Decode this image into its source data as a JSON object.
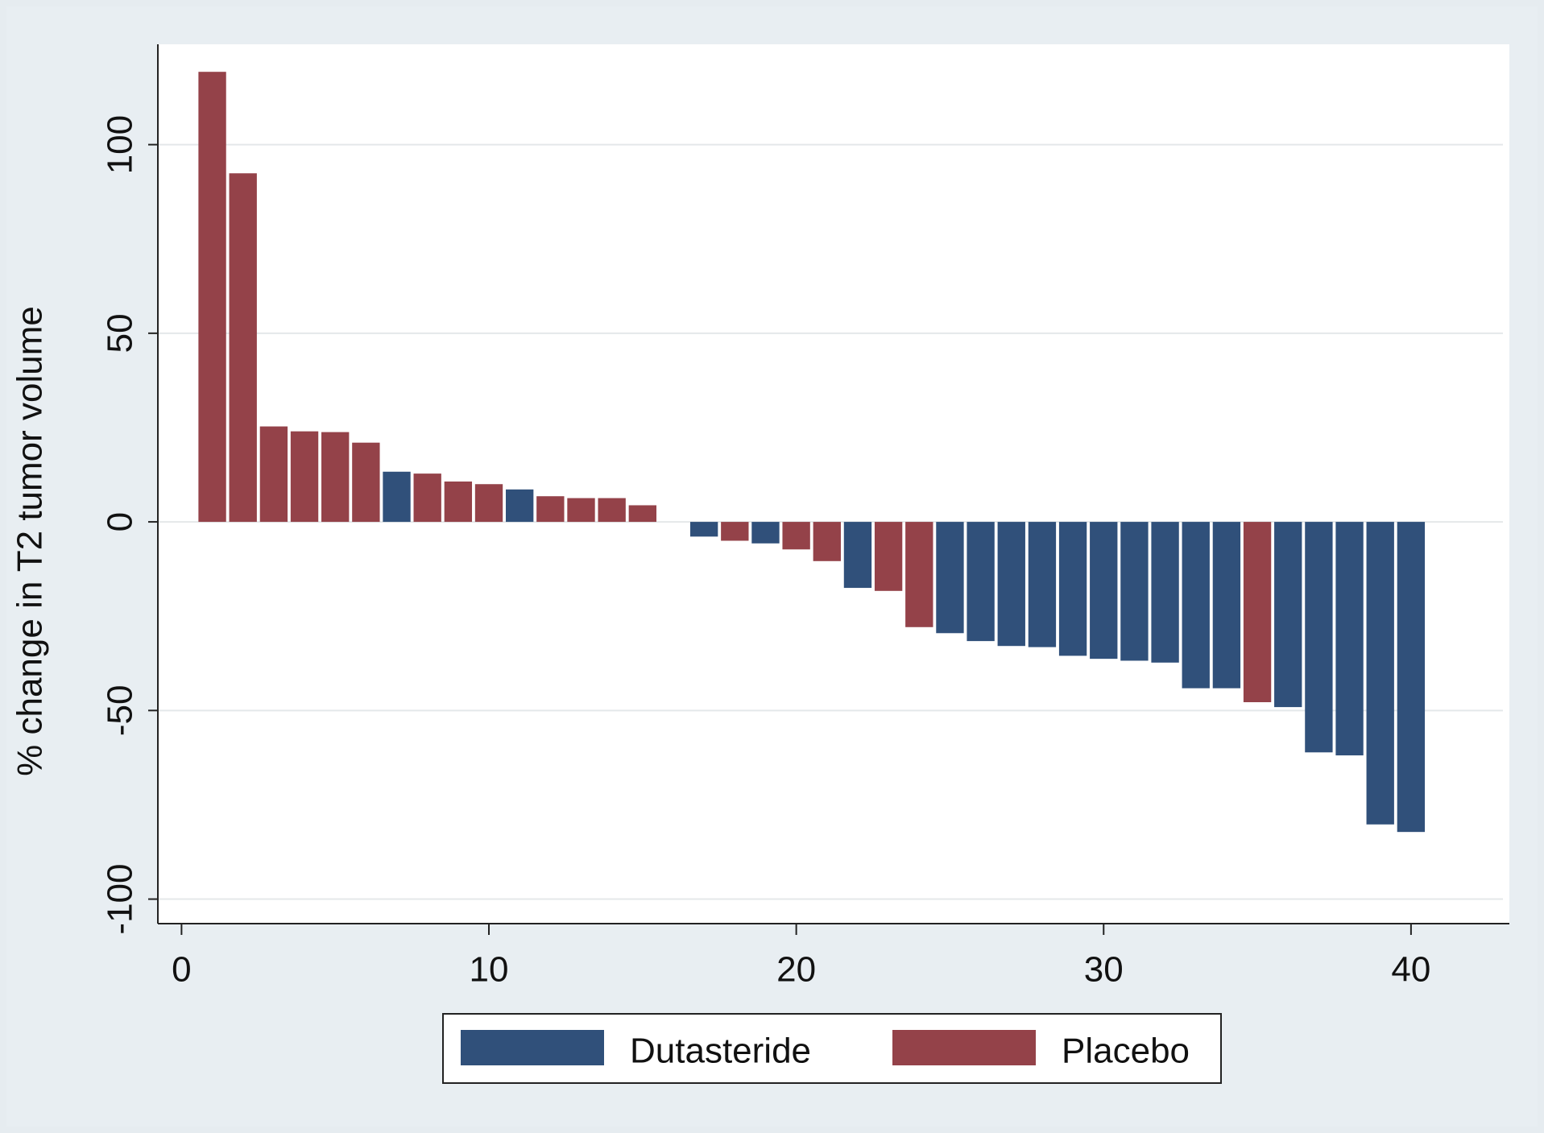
{
  "chart_data": {
    "type": "bar",
    "ylabel": "% change in T2 tumor volume",
    "x": [
      1,
      2,
      3,
      4,
      5,
      6,
      7,
      8,
      9,
      10,
      11,
      12,
      13,
      14,
      15,
      17,
      18,
      19,
      20,
      21,
      22,
      23,
      24,
      25,
      26,
      27,
      28,
      29,
      30,
      31,
      32,
      33,
      34,
      35,
      36,
      37,
      38,
      39,
      40
    ],
    "series": [
      {
        "name": "Dutasteride",
        "color": "#30507a",
        "values": [
          null,
          null,
          null,
          null,
          null,
          null,
          13.3,
          null,
          null,
          null,
          8.6,
          null,
          null,
          null,
          null,
          -3.9,
          null,
          -5.7,
          null,
          null,
          -17.5,
          null,
          null,
          -29.5,
          -31.6,
          -32.9,
          -33.2,
          -35.5,
          -36.3,
          -36.8,
          -37.3,
          -44.1,
          -44.1,
          null,
          -49.1,
          -61.1,
          -61.9,
          -80.2,
          -82.2
        ]
      },
      {
        "name": "Placebo",
        "color": "#944249",
        "values": [
          119.3,
          92.4,
          25.3,
          24,
          23.8,
          21,
          null,
          12.8,
          10.7,
          10,
          null,
          6.8,
          6.3,
          6.3,
          4.4,
          null,
          -5,
          null,
          -7.3,
          -10.4,
          null,
          -18.3,
          -27.9,
          null,
          null,
          null,
          null,
          null,
          null,
          null,
          null,
          null,
          null,
          -47.8,
          null,
          null,
          null,
          null,
          null
        ]
      }
    ],
    "xlim": [
      -0.77,
      43.2
    ],
    "xticks": [
      0,
      10,
      20,
      30,
      40
    ],
    "ylim": [
      -106.5,
      126.6
    ],
    "yticks": [
      -100,
      -50,
      0,
      50,
      100
    ],
    "grid": true,
    "legend": "bottom"
  }
}
